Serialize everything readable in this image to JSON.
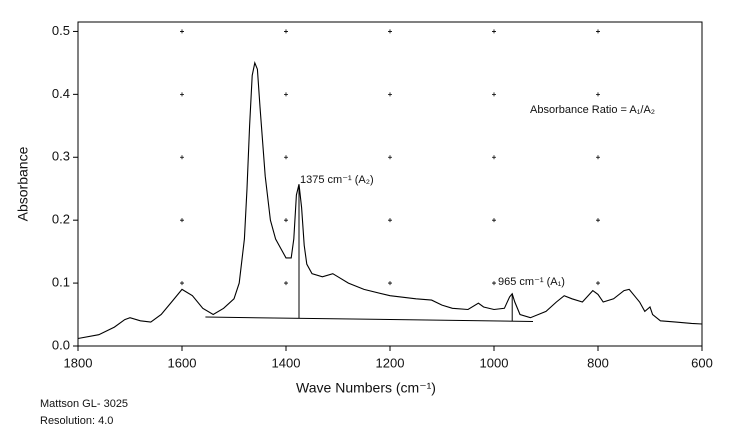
{
  "chart_data": {
    "type": "line",
    "xlabel": "Wave Numbers (cm⁻¹)",
    "ylabel": "Absorbance",
    "xlim": [
      1800,
      600
    ],
    "ylim": [
      0,
      0.515
    ],
    "xticks": [
      1800,
      1600,
      1400,
      1200,
      1000,
      800,
      600
    ],
    "yticks": [
      {
        "value": 0,
        "label": "0.0"
      },
      0.1,
      0.2,
      0.3,
      0.4,
      0.5
    ],
    "grid": true,
    "series": [
      {
        "color": "#000000",
        "x": [
          1800,
          1760,
          1730,
          1710,
          1700,
          1680,
          1660,
          1640,
          1620,
          1600,
          1580,
          1560,
          1540,
          1520,
          1500,
          1490,
          1480,
          1475,
          1470,
          1465,
          1460,
          1455,
          1450,
          1440,
          1430,
          1420,
          1410,
          1400,
          1390,
          1385,
          1380,
          1375,
          1370,
          1365,
          1360,
          1350,
          1330,
          1310,
          1300,
          1280,
          1250,
          1200,
          1150,
          1120,
          1100,
          1080,
          1050,
          1030,
          1020,
          1000,
          980,
          970,
          965,
          960,
          950,
          930,
          900,
          880,
          865,
          850,
          830,
          810,
          800,
          790,
          770,
          750,
          740,
          730,
          720,
          710,
          700,
          695,
          680,
          650,
          620,
          600
        ],
        "values": [
          0.012,
          0.018,
          0.03,
          0.042,
          0.045,
          0.04,
          0.038,
          0.05,
          0.07,
          0.09,
          0.08,
          0.06,
          0.05,
          0.06,
          0.075,
          0.1,
          0.17,
          0.25,
          0.35,
          0.43,
          0.45,
          0.44,
          0.38,
          0.27,
          0.2,
          0.17,
          0.155,
          0.14,
          0.14,
          0.17,
          0.24,
          0.257,
          0.22,
          0.16,
          0.13,
          0.115,
          0.11,
          0.115,
          0.11,
          0.1,
          0.09,
          0.08,
          0.075,
          0.073,
          0.065,
          0.06,
          0.058,
          0.068,
          0.062,
          0.058,
          0.06,
          0.078,
          0.083,
          0.07,
          0.05,
          0.045,
          0.055,
          0.07,
          0.08,
          0.075,
          0.07,
          0.088,
          0.082,
          0.07,
          0.075,
          0.088,
          0.09,
          0.08,
          0.07,
          0.055,
          0.062,
          0.05,
          0.04,
          0.038,
          0.036,
          0.035
        ]
      }
    ],
    "baseline": {
      "x": [
        1555,
        925
      ],
      "values": [
        0.046,
        0.039
      ]
    },
    "annotations": [
      "1375 cm⁻¹ (A₂)",
      "965 cm⁻¹ (A₁)",
      "Absorbance Ratio = A₁/A₂"
    ],
    "footer": [
      "Mattson GL- 3025",
      "Resolution: 4.0"
    ]
  }
}
